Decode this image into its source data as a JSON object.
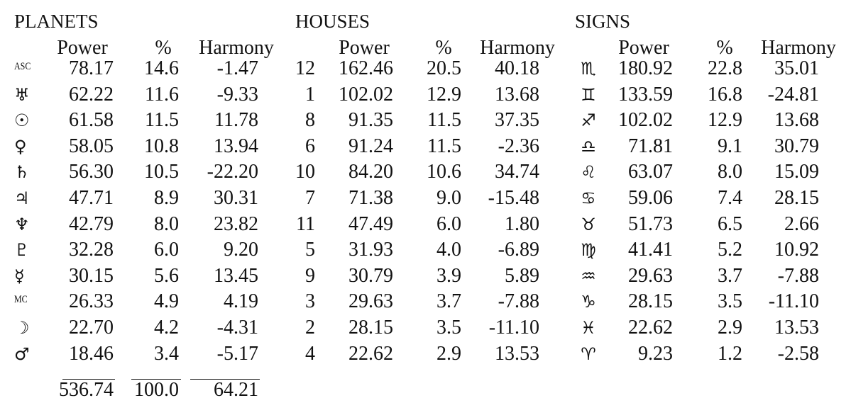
{
  "sections": {
    "planets": {
      "title": "PLANETS",
      "headers": {
        "power": "Power",
        "percent": "%",
        "harmony": "Harmony"
      },
      "rows": [
        {
          "symbol": "ASC",
          "symbol_kind": "text",
          "power": "78.17",
          "percent": "14.6",
          "harmony": "-1.47"
        },
        {
          "symbol": "♅",
          "symbol_kind": "glyph",
          "power": "62.22",
          "percent": "11.6",
          "harmony": "-9.33"
        },
        {
          "symbol": "☉",
          "symbol_kind": "glyph",
          "power": "61.58",
          "percent": "11.5",
          "harmony": "11.78"
        },
        {
          "symbol": "♀",
          "symbol_kind": "glyph",
          "power": "58.05",
          "percent": "10.8",
          "harmony": "13.94"
        },
        {
          "symbol": "♄",
          "symbol_kind": "glyph",
          "power": "56.30",
          "percent": "10.5",
          "harmony": "-22.20"
        },
        {
          "symbol": "♃",
          "symbol_kind": "glyph",
          "power": "47.71",
          "percent": "8.9",
          "harmony": "30.31"
        },
        {
          "symbol": "♆",
          "symbol_kind": "glyph",
          "power": "42.79",
          "percent": "8.0",
          "harmony": "23.82"
        },
        {
          "symbol": "♇",
          "symbol_kind": "glyph",
          "power": "32.28",
          "percent": "6.0",
          "harmony": "9.20"
        },
        {
          "symbol": "☿",
          "symbol_kind": "glyph",
          "power": "30.15",
          "percent": "5.6",
          "harmony": "13.45"
        },
        {
          "symbol": "MC",
          "symbol_kind": "text",
          "power": "26.33",
          "percent": "4.9",
          "harmony": "4.19"
        },
        {
          "symbol": "☽",
          "symbol_kind": "glyph",
          "power": "22.70",
          "percent": "4.2",
          "harmony": "-4.31"
        },
        {
          "symbol": "♂",
          "symbol_kind": "glyph",
          "power": "18.46",
          "percent": "3.4",
          "harmony": "-5.17"
        }
      ],
      "totals": {
        "power": "536.74",
        "percent": "100.0",
        "harmony": "64.21"
      }
    },
    "houses": {
      "title": "HOUSES",
      "headers": {
        "power": "Power",
        "percent": "%",
        "harmony": "Harmony"
      },
      "rows": [
        {
          "house": "12",
          "power": "162.46",
          "percent": "20.5",
          "harmony": "40.18"
        },
        {
          "house": "1",
          "power": "102.02",
          "percent": "12.9",
          "harmony": "13.68"
        },
        {
          "house": "8",
          "power": "91.35",
          "percent": "11.5",
          "harmony": "37.35"
        },
        {
          "house": "6",
          "power": "91.24",
          "percent": "11.5",
          "harmony": "-2.36"
        },
        {
          "house": "10",
          "power": "84.20",
          "percent": "10.6",
          "harmony": "34.74"
        },
        {
          "house": "7",
          "power": "71.38",
          "percent": "9.0",
          "harmony": "-15.48"
        },
        {
          "house": "11",
          "power": "47.49",
          "percent": "6.0",
          "harmony": "1.80"
        },
        {
          "house": "5",
          "power": "31.93",
          "percent": "4.0",
          "harmony": "-6.89"
        },
        {
          "house": "9",
          "power": "30.79",
          "percent": "3.9",
          "harmony": "5.89"
        },
        {
          "house": "3",
          "power": "29.63",
          "percent": "3.7",
          "harmony": "-7.88"
        },
        {
          "house": "2",
          "power": "28.15",
          "percent": "3.5",
          "harmony": "-11.10"
        },
        {
          "house": "4",
          "power": "22.62",
          "percent": "2.9",
          "harmony": "13.53"
        }
      ]
    },
    "signs": {
      "title": "SIGNS",
      "headers": {
        "power": "Power",
        "percent": "%",
        "harmony": "Harmony"
      },
      "rows": [
        {
          "symbol": "♏",
          "power": "180.92",
          "percent": "22.8",
          "harmony": "35.01"
        },
        {
          "symbol": "♊",
          "power": "133.59",
          "percent": "16.8",
          "harmony": "-24.81"
        },
        {
          "symbol": "♐",
          "power": "102.02",
          "percent": "12.9",
          "harmony": "13.68"
        },
        {
          "symbol": "♎",
          "power": "71.81",
          "percent": "9.1",
          "harmony": "30.79"
        },
        {
          "symbol": "♌",
          "power": "63.07",
          "percent": "8.0",
          "harmony": "15.09"
        },
        {
          "symbol": "♋",
          "power": "59.06",
          "percent": "7.4",
          "harmony": "28.15"
        },
        {
          "symbol": "♉",
          "power": "51.73",
          "percent": "6.5",
          "harmony": "2.66"
        },
        {
          "symbol": "♍",
          "power": "41.41",
          "percent": "5.2",
          "harmony": "10.92"
        },
        {
          "symbol": "♒",
          "power": "29.63",
          "percent": "3.7",
          "harmony": "-7.88"
        },
        {
          "symbol": "♑",
          "power": "28.15",
          "percent": "3.5",
          "harmony": "-11.10"
        },
        {
          "symbol": "♓",
          "power": "22.62",
          "percent": "2.9",
          "harmony": "13.53"
        },
        {
          "symbol": "♈",
          "power": "9.23",
          "percent": "1.2",
          "harmony": "-2.58"
        }
      ]
    }
  }
}
